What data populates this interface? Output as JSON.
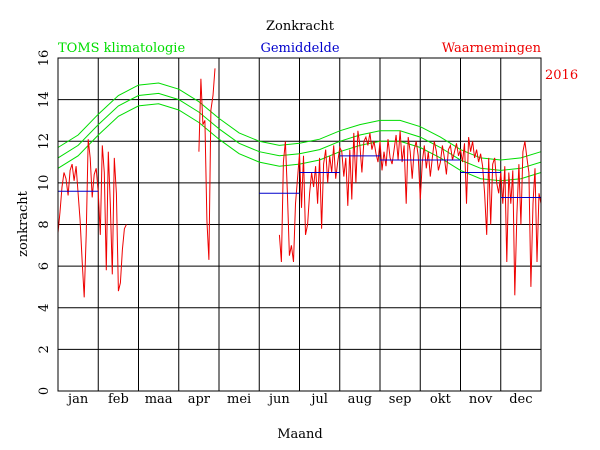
{
  "chart_data": {
    "type": "line",
    "title": "Zonkracht",
    "xlabel": "Maand",
    "ylabel": "zonkracht",
    "year": "2016",
    "ylim": [
      0,
      16
    ],
    "yticks": [
      "0",
      "2",
      "4",
      "6",
      "8",
      "10",
      "12",
      "14",
      "16"
    ],
    "months": [
      "jan",
      "feb",
      "maa",
      "apr",
      "mei",
      "jun",
      "jul",
      "aug",
      "sep",
      "okt",
      "nov",
      "dec"
    ],
    "grid": true,
    "legend": {
      "climatology": "TOMS klimatologie",
      "average": "Gemiddelde",
      "observations": "Waarnemingen"
    },
    "colors": {
      "climatology": "#00dd00",
      "average": "#0000cc",
      "observations": "#ee0000",
      "axis": "#000000"
    },
    "climatology": {
      "middle": [
        [
          0,
          11.2
        ],
        [
          0.5,
          11.8
        ],
        [
          1.0,
          12.8
        ],
        [
          1.5,
          13.7
        ],
        [
          2.0,
          14.2
        ],
        [
          2.5,
          14.3
        ],
        [
          3.0,
          14.0
        ],
        [
          3.5,
          13.4
        ],
        [
          4.0,
          12.6
        ],
        [
          4.5,
          11.9
        ],
        [
          5.0,
          11.5
        ],
        [
          5.5,
          11.3
        ],
        [
          6.0,
          11.4
        ],
        [
          6.5,
          11.6
        ],
        [
          7.0,
          12.0
        ],
        [
          7.5,
          12.3
        ],
        [
          8.0,
          12.5
        ],
        [
          8.5,
          12.5
        ],
        [
          9.0,
          12.2
        ],
        [
          9.5,
          11.7
        ],
        [
          10.0,
          11.1
        ],
        [
          10.5,
          10.7
        ],
        [
          11.0,
          10.6
        ],
        [
          11.5,
          10.7
        ],
        [
          12.0,
          11.0
        ]
      ],
      "band_offset": 0.5
    },
    "monthly_average": [
      {
        "month": 0,
        "value": 9.6
      },
      {
        "month": 5,
        "value": 9.5
      },
      {
        "month": 6,
        "value": 10.5
      },
      {
        "month": 7,
        "value": 11.3
      },
      {
        "month": 8,
        "value": 11.1
      },
      {
        "month": 9,
        "value": 11.1
      },
      {
        "month": 10,
        "value": 10.5
      },
      {
        "month": 11,
        "value": 9.3
      }
    ],
    "observations": [
      [
        [
          0.0,
          7.6
        ],
        [
          0.05,
          8.6
        ],
        [
          0.1,
          9.8
        ],
        [
          0.15,
          10.5
        ],
        [
          0.2,
          10.2
        ],
        [
          0.25,
          9.4
        ],
        [
          0.3,
          10.6
        ],
        [
          0.35,
          10.9
        ],
        [
          0.4,
          10.1
        ],
        [
          0.45,
          10.8
        ],
        [
          0.5,
          9.5
        ],
        [
          0.55,
          8.2
        ],
        [
          0.6,
          6.2
        ],
        [
          0.65,
          4.5
        ],
        [
          0.7,
          7.5
        ],
        [
          0.75,
          12.1
        ],
        [
          0.8,
          11.2
        ],
        [
          0.85,
          9.3
        ],
        [
          0.9,
          10.4
        ],
        [
          0.95,
          10.7
        ],
        [
          1.0,
          9.5
        ],
        [
          1.05,
          7.5
        ],
        [
          1.1,
          11.8
        ],
        [
          1.15,
          10.5
        ],
        [
          1.2,
          5.8
        ],
        [
          1.25,
          11.5
        ],
        [
          1.3,
          9.0
        ],
        [
          1.35,
          5.6
        ],
        [
          1.4,
          11.2
        ],
        [
          1.45,
          9.5
        ],
        [
          1.5,
          4.8
        ],
        [
          1.55,
          5.2
        ],
        [
          1.6,
          6.8
        ],
        [
          1.65,
          7.8
        ],
        [
          1.7,
          8.0
        ]
      ],
      [
        [
          3.5,
          11.5
        ],
        [
          3.55,
          15.0
        ],
        [
          3.6,
          12.8
        ],
        [
          3.65,
          13.0
        ],
        [
          3.7,
          8.2
        ],
        [
          3.75,
          6.3
        ],
        [
          3.8,
          13.5
        ],
        [
          3.85,
          14.2
        ],
        [
          3.9,
          15.5
        ]
      ],
      [
        [
          5.5,
          7.5
        ],
        [
          5.55,
          6.2
        ],
        [
          5.6,
          11.0
        ],
        [
          5.65,
          12.0
        ],
        [
          5.7,
          9.5
        ],
        [
          5.75,
          6.5
        ],
        [
          5.8,
          7.0
        ],
        [
          5.85,
          6.2
        ],
        [
          5.9,
          9.0
        ],
        [
          5.95,
          10.2
        ],
        [
          6.0,
          11.4
        ],
        [
          6.05,
          8.8
        ],
        [
          6.1,
          11.3
        ],
        [
          6.15,
          7.5
        ],
        [
          6.2,
          8.0
        ],
        [
          6.25,
          9.5
        ],
        [
          6.3,
          10.5
        ],
        [
          6.35,
          9.8
        ],
        [
          6.4,
          10.8
        ],
        [
          6.45,
          9.0
        ],
        [
          6.5,
          11.2
        ],
        [
          6.55,
          7.8
        ],
        [
          6.6,
          10.9
        ],
        [
          6.65,
          11.6
        ],
        [
          6.7,
          10.0
        ],
        [
          6.75,
          11.3
        ],
        [
          6.8,
          10.5
        ],
        [
          6.85,
          11.8
        ],
        [
          6.9,
          10.2
        ],
        [
          6.95,
          11.0
        ],
        [
          7.0,
          11.7
        ],
        [
          7.05,
          11.5
        ],
        [
          7.1,
          10.3
        ],
        [
          7.15,
          11.2
        ],
        [
          7.2,
          8.9
        ],
        [
          7.25,
          11.6
        ],
        [
          7.3,
          9.2
        ],
        [
          7.35,
          12.4
        ],
        [
          7.4,
          10.0
        ],
        [
          7.45,
          12.5
        ],
        [
          7.5,
          11.8
        ],
        [
          7.55,
          10.5
        ],
        [
          7.6,
          12.0
        ],
        [
          7.65,
          12.2
        ],
        [
          7.7,
          11.8
        ],
        [
          7.75,
          12.4
        ],
        [
          7.8,
          11.6
        ],
        [
          7.85,
          12.0
        ],
        [
          7.9,
          11.4
        ],
        [
          7.95,
          11.0
        ],
        [
          8.0,
          12.0
        ],
        [
          8.05,
          10.6
        ],
        [
          8.1,
          11.5
        ],
        [
          8.15,
          10.8
        ],
        [
          8.2,
          12.1
        ],
        [
          8.25,
          11.2
        ],
        [
          8.3,
          10.9
        ],
        [
          8.35,
          11.6
        ],
        [
          8.4,
          12.3
        ],
        [
          8.45,
          11.1
        ],
        [
          8.5,
          12.5
        ],
        [
          8.55,
          11.0
        ],
        [
          8.6,
          11.8
        ],
        [
          8.65,
          9.0
        ],
        [
          8.7,
          12.2
        ],
        [
          8.75,
          11.5
        ],
        [
          8.8,
          10.2
        ],
        [
          8.85,
          11.6
        ],
        [
          8.9,
          12.0
        ],
        [
          8.95,
          11.3
        ],
        [
          9.0,
          9.2
        ],
        [
          9.05,
          11.0
        ],
        [
          9.1,
          11.8
        ],
        [
          9.15,
          10.7
        ],
        [
          9.2,
          11.5
        ],
        [
          9.25,
          10.3
        ],
        [
          9.3,
          11.2
        ],
        [
          9.35,
          12.0
        ],
        [
          9.4,
          11.5
        ],
        [
          9.45,
          10.6
        ],
        [
          9.5,
          11.0
        ],
        [
          9.55,
          11.8
        ],
        [
          9.6,
          11.2
        ],
        [
          9.65,
          10.4
        ],
        [
          9.7,
          11.6
        ],
        [
          9.75,
          11.8
        ],
        [
          9.8,
          11.1
        ],
        [
          9.85,
          11.5
        ],
        [
          9.9,
          11.9
        ],
        [
          9.95,
          11.3
        ],
        [
          10.0,
          11.6
        ],
        [
          10.05,
          11.0
        ],
        [
          10.1,
          11.9
        ],
        [
          10.15,
          9.0
        ],
        [
          10.2,
          12.2
        ],
        [
          10.25,
          11.5
        ],
        [
          10.3,
          12.0
        ],
        [
          10.35,
          11.2
        ],
        [
          10.4,
          11.6
        ],
        [
          10.45,
          11.0
        ],
        [
          10.5,
          11.4
        ],
        [
          10.55,
          10.8
        ],
        [
          10.6,
          9.5
        ],
        [
          10.65,
          7.5
        ],
        [
          10.7,
          11.2
        ],
        [
          10.75,
          8.0
        ],
        [
          10.8,
          10.9
        ],
        [
          10.85,
          11.2
        ],
        [
          10.9,
          10.0
        ],
        [
          10.95,
          9.5
        ],
        [
          11.0,
          10.5
        ],
        [
          11.05,
          9.0
        ],
        [
          11.1,
          10.8
        ],
        [
          11.15,
          6.2
        ],
        [
          11.2,
          10.5
        ],
        [
          11.25,
          9.0
        ],
        [
          11.3,
          10.6
        ],
        [
          11.35,
          4.6
        ],
        [
          11.4,
          8.5
        ],
        [
          11.45,
          10.9
        ],
        [
          11.5,
          8.0
        ],
        [
          11.55,
          11.5
        ],
        [
          11.6,
          12.0
        ],
        [
          11.65,
          11.2
        ],
        [
          11.7,
          10.5
        ],
        [
          11.75,
          5.0
        ],
        [
          11.8,
          9.0
        ],
        [
          11.85,
          10.7
        ],
        [
          11.9,
          6.2
        ],
        [
          11.95,
          9.5
        ],
        [
          12.0,
          9.0
        ]
      ]
    ]
  }
}
